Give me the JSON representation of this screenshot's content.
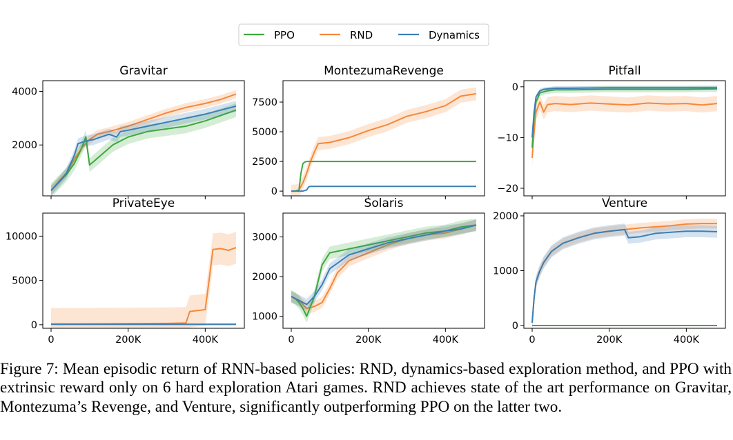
{
  "legend": {
    "items": [
      {
        "name": "PPO",
        "color": "#3ea83e"
      },
      {
        "name": "RND",
        "color": "#f5883a"
      },
      {
        "name": "Dynamics",
        "color": "#3b7fb5"
      }
    ]
  },
  "chart_data": [
    {
      "type": "line",
      "title": "Gravitar",
      "xlim": [
        0,
        480000
      ],
      "ylim": [
        100,
        4400
      ],
      "yticks": [
        2000,
        4000
      ],
      "ytick_labels": [
        "2000",
        "4000"
      ],
      "xticks": [
        0,
        200000,
        400000
      ],
      "xtick_labels": [
        "",
        "",
        ""
      ],
      "series": [
        {
          "name": "PPO",
          "x": [
            0,
            20000,
            40000,
            60000,
            80000,
            90000,
            100000,
            120000,
            160000,
            200000,
            250000,
            300000,
            350000,
            400000,
            440000,
            480000
          ],
          "y": [
            300,
            600,
            900,
            1300,
            1900,
            2300,
            1250,
            1500,
            2000,
            2300,
            2500,
            2600,
            2700,
            2900,
            3100,
            3300
          ],
          "band": 260
        },
        {
          "name": "RND",
          "x": [
            0,
            20000,
            40000,
            60000,
            80000,
            100000,
            120000,
            150000,
            200000,
            250000,
            300000,
            350000,
            400000,
            440000,
            480000
          ],
          "y": [
            300,
            650,
            950,
            1450,
            1900,
            2200,
            2400,
            2500,
            2700,
            2950,
            3200,
            3400,
            3550,
            3700,
            3900
          ],
          "band": 160
        },
        {
          "name": "Dynamics",
          "x": [
            0,
            20000,
            40000,
            60000,
            70000,
            90000,
            110000,
            130000,
            150000,
            170000,
            180000,
            200000,
            250000,
            300000,
            350000,
            400000,
            440000,
            480000
          ],
          "y": [
            300,
            600,
            950,
            1600,
            2050,
            2150,
            2200,
            2300,
            2400,
            2300,
            2500,
            2550,
            2700,
            2850,
            3000,
            3150,
            3300,
            3450
          ],
          "band": 200
        }
      ]
    },
    {
      "type": "line",
      "title": "MontezumaRevenge",
      "xlim": [
        0,
        480000
      ],
      "ylim": [
        -400,
        9300
      ],
      "yticks": [
        0,
        2500,
        5000,
        7500
      ],
      "ytick_labels": [
        "0",
        "2500",
        "5000",
        "7500"
      ],
      "xticks": [
        0,
        200000,
        400000
      ],
      "xtick_labels": [
        "",
        "",
        ""
      ],
      "series": [
        {
          "name": "PPO",
          "x": [
            0,
            10000,
            20000,
            25000,
            30000,
            35000,
            40000,
            480000
          ],
          "y": [
            0,
            0,
            100,
            1500,
            2300,
            2450,
            2500,
            2500
          ],
          "band": 40
        },
        {
          "name": "RND",
          "x": [
            0,
            10000,
            20000,
            30000,
            40000,
            50000,
            60000,
            70000,
            100000,
            150000,
            200000,
            250000,
            300000,
            350000,
            400000,
            440000,
            480000
          ],
          "y": [
            0,
            0,
            100,
            700,
            1500,
            2500,
            3300,
            4000,
            4100,
            4500,
            5100,
            5600,
            6300,
            6700,
            7200,
            8000,
            8200
          ],
          "band": 550
        },
        {
          "name": "Dynamics",
          "x": [
            0,
            30000,
            40000,
            45000,
            50000,
            60000,
            480000
          ],
          "y": [
            0,
            0,
            100,
            350,
            400,
            400,
            400
          ],
          "band": 30
        }
      ]
    },
    {
      "type": "line",
      "title": "Pitfall",
      "xlim": [
        0,
        480000
      ],
      "ylim": [
        -21.5,
        1.2
      ],
      "yticks": [
        -20,
        -10,
        0
      ],
      "ytick_labels": [
        "−20",
        "−10",
        "0"
      ],
      "xticks": [
        0,
        200000,
        400000
      ],
      "xtick_labels": [
        "",
        "",
        ""
      ],
      "series": [
        {
          "name": "PPO",
          "x": [
            0,
            5000,
            10000,
            20000,
            40000,
            60000,
            100000,
            200000,
            300000,
            400000,
            480000
          ],
          "y": [
            -12,
            -6,
            -3,
            -1.2,
            -0.8,
            -0.6,
            -0.6,
            -0.5,
            -0.5,
            -0.5,
            -0.4
          ],
          "band": 0.6
        },
        {
          "name": "RND",
          "x": [
            0,
            5000,
            10000,
            20000,
            30000,
            40000,
            60000,
            100000,
            150000,
            200000,
            250000,
            300000,
            350000,
            400000,
            440000,
            480000
          ],
          "y": [
            -14,
            -9,
            -5,
            -3,
            -5,
            -3.5,
            -3.3,
            -3.5,
            -3.2,
            -3.4,
            -3.6,
            -3.2,
            -3.4,
            -3.3,
            -3.6,
            -3.3
          ],
          "band": 1.5
        },
        {
          "name": "Dynamics",
          "x": [
            0,
            5000,
            10000,
            20000,
            30000,
            60000,
            100000,
            200000,
            300000,
            400000,
            480000
          ],
          "y": [
            -10,
            -5,
            -2,
            -0.8,
            -0.5,
            -0.3,
            -0.3,
            -0.2,
            -0.2,
            -0.2,
            -0.2
          ],
          "band": 0.4
        }
      ]
    },
    {
      "type": "line",
      "title": "PrivateEye",
      "xlim": [
        0,
        480000
      ],
      "ylim": [
        -400,
        12600
      ],
      "yticks": [
        0,
        5000,
        10000
      ],
      "ytick_labels": [
        "0",
        "5000",
        "10000"
      ],
      "xticks": [
        0,
        200000,
        400000
      ],
      "xtick_labels": [
        "0",
        "200K",
        "400K"
      ],
      "series": [
        {
          "name": "PPO",
          "x": [
            0,
            480000
          ],
          "y": [
            50,
            50
          ],
          "band": 30
        },
        {
          "name": "RND",
          "x": [
            0,
            100000,
            200000,
            300000,
            350000,
            360000,
            380000,
            400000,
            410000,
            420000,
            440000,
            460000,
            480000
          ],
          "y": [
            80,
            100,
            120,
            150,
            200,
            1500,
            1600,
            1700,
            5000,
            8500,
            8600,
            8400,
            8700
          ],
          "band": 1800
        },
        {
          "name": "Dynamics",
          "x": [
            0,
            480000
          ],
          "y": [
            40,
            40
          ],
          "band": 20
        }
      ]
    },
    {
      "type": "line",
      "title": "Solaris",
      "xlim": [
        0,
        480000
      ],
      "ylim": [
        700,
        3600
      ],
      "yticks": [
        1000,
        2000,
        3000
      ],
      "ytick_labels": [
        "1000",
        "2000",
        "3000"
      ],
      "xticks": [
        0,
        200000,
        400000
      ],
      "xtick_labels": [
        "0",
        "200K",
        "400K"
      ],
      "series": [
        {
          "name": "PPO",
          "x": [
            0,
            10000,
            20000,
            30000,
            40000,
            60000,
            80000,
            100000,
            150000,
            200000,
            250000,
            300000,
            350000,
            400000,
            440000,
            480000
          ],
          "y": [
            1500,
            1450,
            1350,
            1200,
            1000,
            1500,
            2300,
            2600,
            2700,
            2800,
            2900,
            3000,
            3100,
            3150,
            3250,
            3300
          ],
          "band": 160
        },
        {
          "name": "RND",
          "x": [
            0,
            20000,
            40000,
            60000,
            80000,
            100000,
            120000,
            150000,
            200000,
            250000,
            300000,
            350000,
            400000,
            440000,
            480000
          ],
          "y": [
            1500,
            1400,
            1200,
            1250,
            1350,
            1700,
            2100,
            2400,
            2600,
            2800,
            2950,
            3050,
            3100,
            3200,
            3300
          ],
          "band": 140
        },
        {
          "name": "Dynamics",
          "x": [
            0,
            20000,
            40000,
            60000,
            80000,
            100000,
            150000,
            200000,
            250000,
            300000,
            350000,
            400000,
            440000,
            480000
          ],
          "y": [
            1500,
            1400,
            1300,
            1500,
            1800,
            2200,
            2550,
            2700,
            2850,
            2950,
            3050,
            3150,
            3200,
            3300
          ],
          "band": 140
        }
      ]
    },
    {
      "type": "line",
      "title": "Venture",
      "xlim": [
        0,
        480000
      ],
      "ylim": [
        -50,
        2050
      ],
      "yticks": [
        0,
        1000,
        2000
      ],
      "ytick_labels": [
        "0",
        "1000",
        "2000"
      ],
      "xticks": [
        0,
        200000,
        400000
      ],
      "xtick_labels": [
        "0",
        "200K",
        "400K"
      ],
      "series": [
        {
          "name": "PPO",
          "x": [
            0,
            480000
          ],
          "y": [
            0,
            0
          ],
          "band": 8
        },
        {
          "name": "RND",
          "x": [
            0,
            5000,
            10000,
            20000,
            30000,
            50000,
            80000,
            120000,
            160000,
            200000,
            240000,
            280000,
            320000,
            360000,
            400000,
            440000,
            480000
          ],
          "y": [
            50,
            500,
            800,
            1000,
            1150,
            1350,
            1500,
            1600,
            1680,
            1720,
            1750,
            1780,
            1800,
            1820,
            1850,
            1860,
            1860
          ],
          "band": 90
        },
        {
          "name": "Dynamics",
          "x": [
            0,
            5000,
            10000,
            20000,
            30000,
            50000,
            80000,
            120000,
            160000,
            200000,
            240000,
            250000,
            280000,
            320000,
            360000,
            400000,
            440000,
            480000
          ],
          "y": [
            50,
            500,
            800,
            1000,
            1150,
            1350,
            1500,
            1600,
            1680,
            1720,
            1750,
            1600,
            1620,
            1680,
            1700,
            1720,
            1720,
            1710
          ],
          "band": 110
        }
      ]
    }
  ],
  "caption": "Figure 7: Mean episodic return of RNN-based policies: RND, dynamics-based exploration method, and PPO with extrinsic reward only on 6 hard exploration Atari games. RND achieves state of the art performance on Gravitar, Montezuma’s Revenge, and Venture, significantly outperforming PPO on the latter two."
}
